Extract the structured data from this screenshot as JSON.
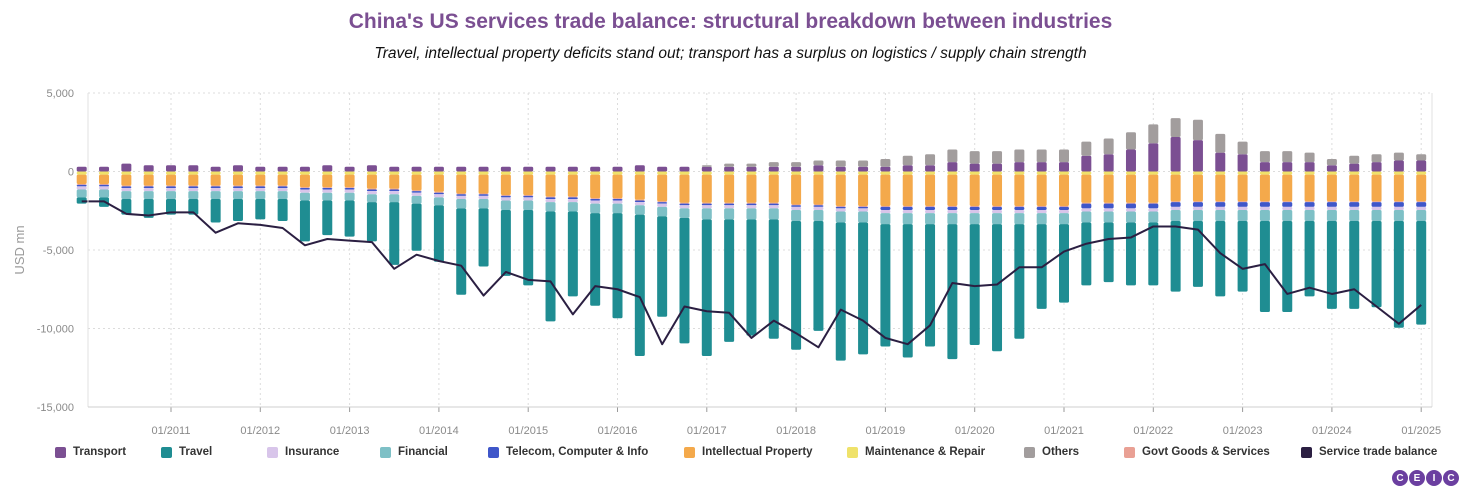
{
  "title": "China's US services trade balance: structural breakdown between industries",
  "subtitle": "Travel, intellectual property deficits stand out; transport has a surplus on logistics / supply chain strength",
  "brand": [
    "C",
    "E",
    "I",
    "C"
  ],
  "chart_data": {
    "type": "bar",
    "stacked": true,
    "ylabel": "USD mn",
    "ylim": [
      -15000,
      5000
    ],
    "yticks": [
      "5,000",
      "0",
      "-5,000",
      "-10,000",
      "-15,000"
    ],
    "ytick_values": [
      5000,
      0,
      -5000,
      -10000,
      -15000
    ],
    "xticks": [
      "01/2011",
      "01/2012",
      "01/2013",
      "01/2014",
      "01/2015",
      "01/2016",
      "01/2017",
      "01/2018",
      "01/2019",
      "01/2020",
      "01/2021",
      "01/2022",
      "01/2023",
      "01/2024",
      "01/2025"
    ],
    "x_start": "Q1 2010",
    "x_frequency": "quarterly",
    "grid": true,
    "legend_position": "bottom",
    "colors": {
      "Transport": "#7b4f92",
      "Travel": "#1f8d92",
      "Insurance": "#d8c5ea",
      "Financial": "#7ec0c6",
      "Telecom, Computer & Info": "#3f56c9",
      "Intellectual Property": "#f4a94b",
      "Maintenance & Repair": "#efe26a",
      "Others": "#a29d9d",
      "Govt Goods & Services": "#e9a094",
      "Service trade balance": "#2b1f42"
    },
    "positive_series": [
      {
        "name": "Transport",
        "values": [
          300,
          300,
          500,
          400,
          400,
          400,
          300,
          400,
          300,
          300,
          300,
          400,
          300,
          400,
          300,
          300,
          300,
          300,
          300,
          300,
          300,
          300,
          300,
          300,
          300,
          400,
          300,
          300,
          300,
          300,
          300,
          300,
          300,
          400,
          300,
          300,
          300,
          400,
          400,
          600,
          500,
          500,
          600,
          600,
          600,
          1000,
          1100,
          1400,
          1800,
          2200,
          2000,
          1200,
          1100,
          600,
          600,
          600,
          400,
          500,
          600,
          700,
          700
        ]
      },
      {
        "name": "Others",
        "values": [
          0,
          0,
          0,
          0,
          0,
          0,
          0,
          0,
          0,
          0,
          0,
          0,
          0,
          0,
          0,
          0,
          0,
          0,
          0,
          0,
          0,
          0,
          0,
          0,
          0,
          0,
          0,
          0,
          100,
          200,
          200,
          300,
          300,
          300,
          400,
          400,
          500,
          600,
          700,
          800,
          800,
          800,
          800,
          800,
          800,
          900,
          1000,
          1100,
          1200,
          1200,
          1300,
          1200,
          800,
          700,
          700,
          600,
          400,
          500,
          500,
          500,
          400
        ]
      }
    ],
    "negative_series": [
      {
        "name": "Maintenance & Repair",
        "values": [
          -200,
          -200,
          -200,
          -200,
          -200,
          -200,
          -200,
          -200,
          -200,
          -200,
          -200,
          -200,
          -200,
          -200,
          -200,
          -200,
          -200,
          -200,
          -200,
          -200,
          -200,
          -200,
          -200,
          -200,
          -200,
          -200,
          -200,
          -200,
          -200,
          -200,
          -200,
          -200,
          -200,
          -200,
          -200,
          -200,
          -200,
          -200,
          -200,
          -200,
          -200,
          -200,
          -200,
          -200,
          -200,
          -200,
          -200,
          -200,
          -200,
          -200,
          -200,
          -200,
          -200,
          -200,
          -200,
          -200,
          -200,
          -200,
          -200,
          -200,
          -200
        ]
      },
      {
        "name": "Intellectual Property",
        "values": [
          -600,
          -600,
          -700,
          -700,
          -700,
          -700,
          -700,
          -700,
          -700,
          -700,
          -800,
          -800,
          -800,
          -900,
          -900,
          -1000,
          -1100,
          -1200,
          -1200,
          -1300,
          -1300,
          -1400,
          -1400,
          -1500,
          -1500,
          -1600,
          -1700,
          -1800,
          -1800,
          -1800,
          -1800,
          -1800,
          -1900,
          -1900,
          -2000,
          -2000,
          -2000,
          -2000,
          -2000,
          -2000,
          -2000,
          -2000,
          -2000,
          -2000,
          -2000,
          -1800,
          -1800,
          -1800,
          -1800,
          -1700,
          -1700,
          -1700,
          -1700,
          -1700,
          -1700,
          -1700,
          -1700,
          -1700,
          -1700,
          -1700,
          -1700
        ]
      },
      {
        "name": "Govt Goods & Services",
        "values": [
          -50,
          -50,
          -50,
          -50,
          -50,
          -50,
          -50,
          -50,
          -50,
          -50,
          -50,
          -50,
          -50,
          -50,
          -50,
          -50,
          -50,
          -50,
          -50,
          -50,
          -50,
          -50,
          -50,
          -50,
          -50,
          -50,
          -50,
          -50,
          -50,
          -50,
          -50,
          -50,
          -50,
          -50,
          -50,
          -50,
          -50,
          -50,
          -50,
          -50,
          -50,
          -50,
          -50,
          -50,
          -50,
          -50,
          -50,
          -50,
          -50,
          -50,
          -50,
          -50,
          -50,
          -50,
          -50,
          -50,
          -50,
          -50,
          -50,
          -50,
          -50
        ]
      },
      {
        "name": "Telecom, Computer & Info",
        "values": [
          -100,
          -100,
          -100,
          -100,
          -100,
          -100,
          -100,
          -100,
          -100,
          -100,
          -100,
          -100,
          -100,
          -100,
          -100,
          -100,
          -100,
          -100,
          -100,
          -100,
          -100,
          -100,
          -100,
          -100,
          -100,
          -100,
          -100,
          -100,
          -100,
          -100,
          -100,
          -100,
          -100,
          -100,
          -100,
          -100,
          -200,
          -200,
          -200,
          -200,
          -200,
          -200,
          -200,
          -200,
          -200,
          -300,
          -300,
          -300,
          -300,
          -300,
          -300,
          -300,
          -300,
          -300,
          -300,
          -300,
          -300,
          -300,
          -300,
          -300,
          -300
        ]
      },
      {
        "name": "Insurance",
        "values": [
          -200,
          -200,
          -200,
          -200,
          -200,
          -200,
          -200,
          -200,
          -200,
          -200,
          -200,
          -200,
          -200,
          -200,
          -200,
          -200,
          -200,
          -200,
          -200,
          -200,
          -200,
          -200,
          -200,
          -200,
          -200,
          -200,
          -200,
          -200,
          -200,
          -200,
          -200,
          -200,
          -200,
          -200,
          -200,
          -200,
          -200,
          -200,
          -200,
          -200,
          -200,
          -200,
          -200,
          -200,
          -200,
          -200,
          -200,
          -200,
          -200,
          -200,
          -200,
          -200,
          -200,
          -200,
          -200,
          -200,
          -200,
          -200,
          -200,
          -200,
          -200
        ]
      },
      {
        "name": "Financial",
        "values": [
          -500,
          -500,
          -500,
          -500,
          -500,
          -500,
          -500,
          -500,
          -500,
          -500,
          -500,
          -500,
          -500,
          -500,
          -500,
          -500,
          -500,
          -600,
          -600,
          -600,
          -600,
          -600,
          -600,
          -600,
          -600,
          -600,
          -600,
          -600,
          -700,
          -700,
          -700,
          -700,
          -700,
          -700,
          -700,
          -700,
          -700,
          -700,
          -700,
          -700,
          -700,
          -700,
          -700,
          -700,
          -700,
          -700,
          -700,
          -700,
          -700,
          -700,
          -700,
          -700,
          -700,
          -700,
          -700,
          -700,
          -700,
          -700,
          -700,
          -700,
          -700
        ]
      },
      {
        "name": "Travel",
        "values": [
          -400,
          -600,
          -1000,
          -1200,
          -1000,
          -1000,
          -1500,
          -1400,
          -1300,
          -1400,
          -2600,
          -2200,
          -2300,
          -2500,
          -4000,
          -3000,
          -3600,
          -5500,
          -3700,
          -4200,
          -4800,
          -7000,
          -5400,
          -5900,
          -6700,
          -9000,
          -6400,
          -8000,
          -8700,
          -7800,
          -7400,
          -7600,
          -8200,
          -7000,
          -8800,
          -8400,
          -7800,
          -8500,
          -7800,
          -8600,
          -7700,
          -8100,
          -7300,
          -5400,
          -5000,
          -4000,
          -3800,
          -4000,
          -4000,
          -4500,
          -4200,
          -4800,
          -4500,
          -5800,
          -5800,
          -4800,
          -5600,
          -5600,
          -5500,
          -6800,
          -6600
        ]
      }
    ],
    "line_series": {
      "name": "Service trade balance",
      "values": [
        -1900,
        -1900,
        -2700,
        -2800,
        -2600,
        -2600,
        -3900,
        -3300,
        -3400,
        -3600,
        -4700,
        -4300,
        -4400,
        -4500,
        -6200,
        -5300,
        -5700,
        -6000,
        -7900,
        -6400,
        -6900,
        -7000,
        -9100,
        -7300,
        -7500,
        -8000,
        -11000,
        -8600,
        -8900,
        -9000,
        -10600,
        -9500,
        -10300,
        -11200,
        -8800,
        -9500,
        -10600,
        -11000,
        -9800,
        -7100,
        -7300,
        -7200,
        -6100,
        -6100,
        -5100,
        -4600,
        -4300,
        -4200,
        -3500,
        -3500,
        -3700,
        -5200,
        -6200,
        -5900,
        -7800,
        -7400,
        -7800,
        -7500,
        -8600,
        -9700,
        -8500
      ]
    }
  },
  "legend": [
    {
      "label": "Transport",
      "color": "#7b4f92"
    },
    {
      "label": "Travel",
      "color": "#1f8d92"
    },
    {
      "label": "Insurance",
      "color": "#d8c5ea"
    },
    {
      "label": "Financial",
      "color": "#7ec0c6"
    },
    {
      "label": "Telecom, Computer & Info",
      "color": "#3f56c9"
    },
    {
      "label": "Intellectual Property",
      "color": "#f4a94b"
    },
    {
      "label": "Maintenance & Repair",
      "color": "#efe26a"
    },
    {
      "label": "Others",
      "color": "#a29d9d"
    },
    {
      "label": "Govt Goods & Services",
      "color": "#e9a094"
    },
    {
      "label": "Service trade balance",
      "color": "#2b1f42"
    }
  ]
}
